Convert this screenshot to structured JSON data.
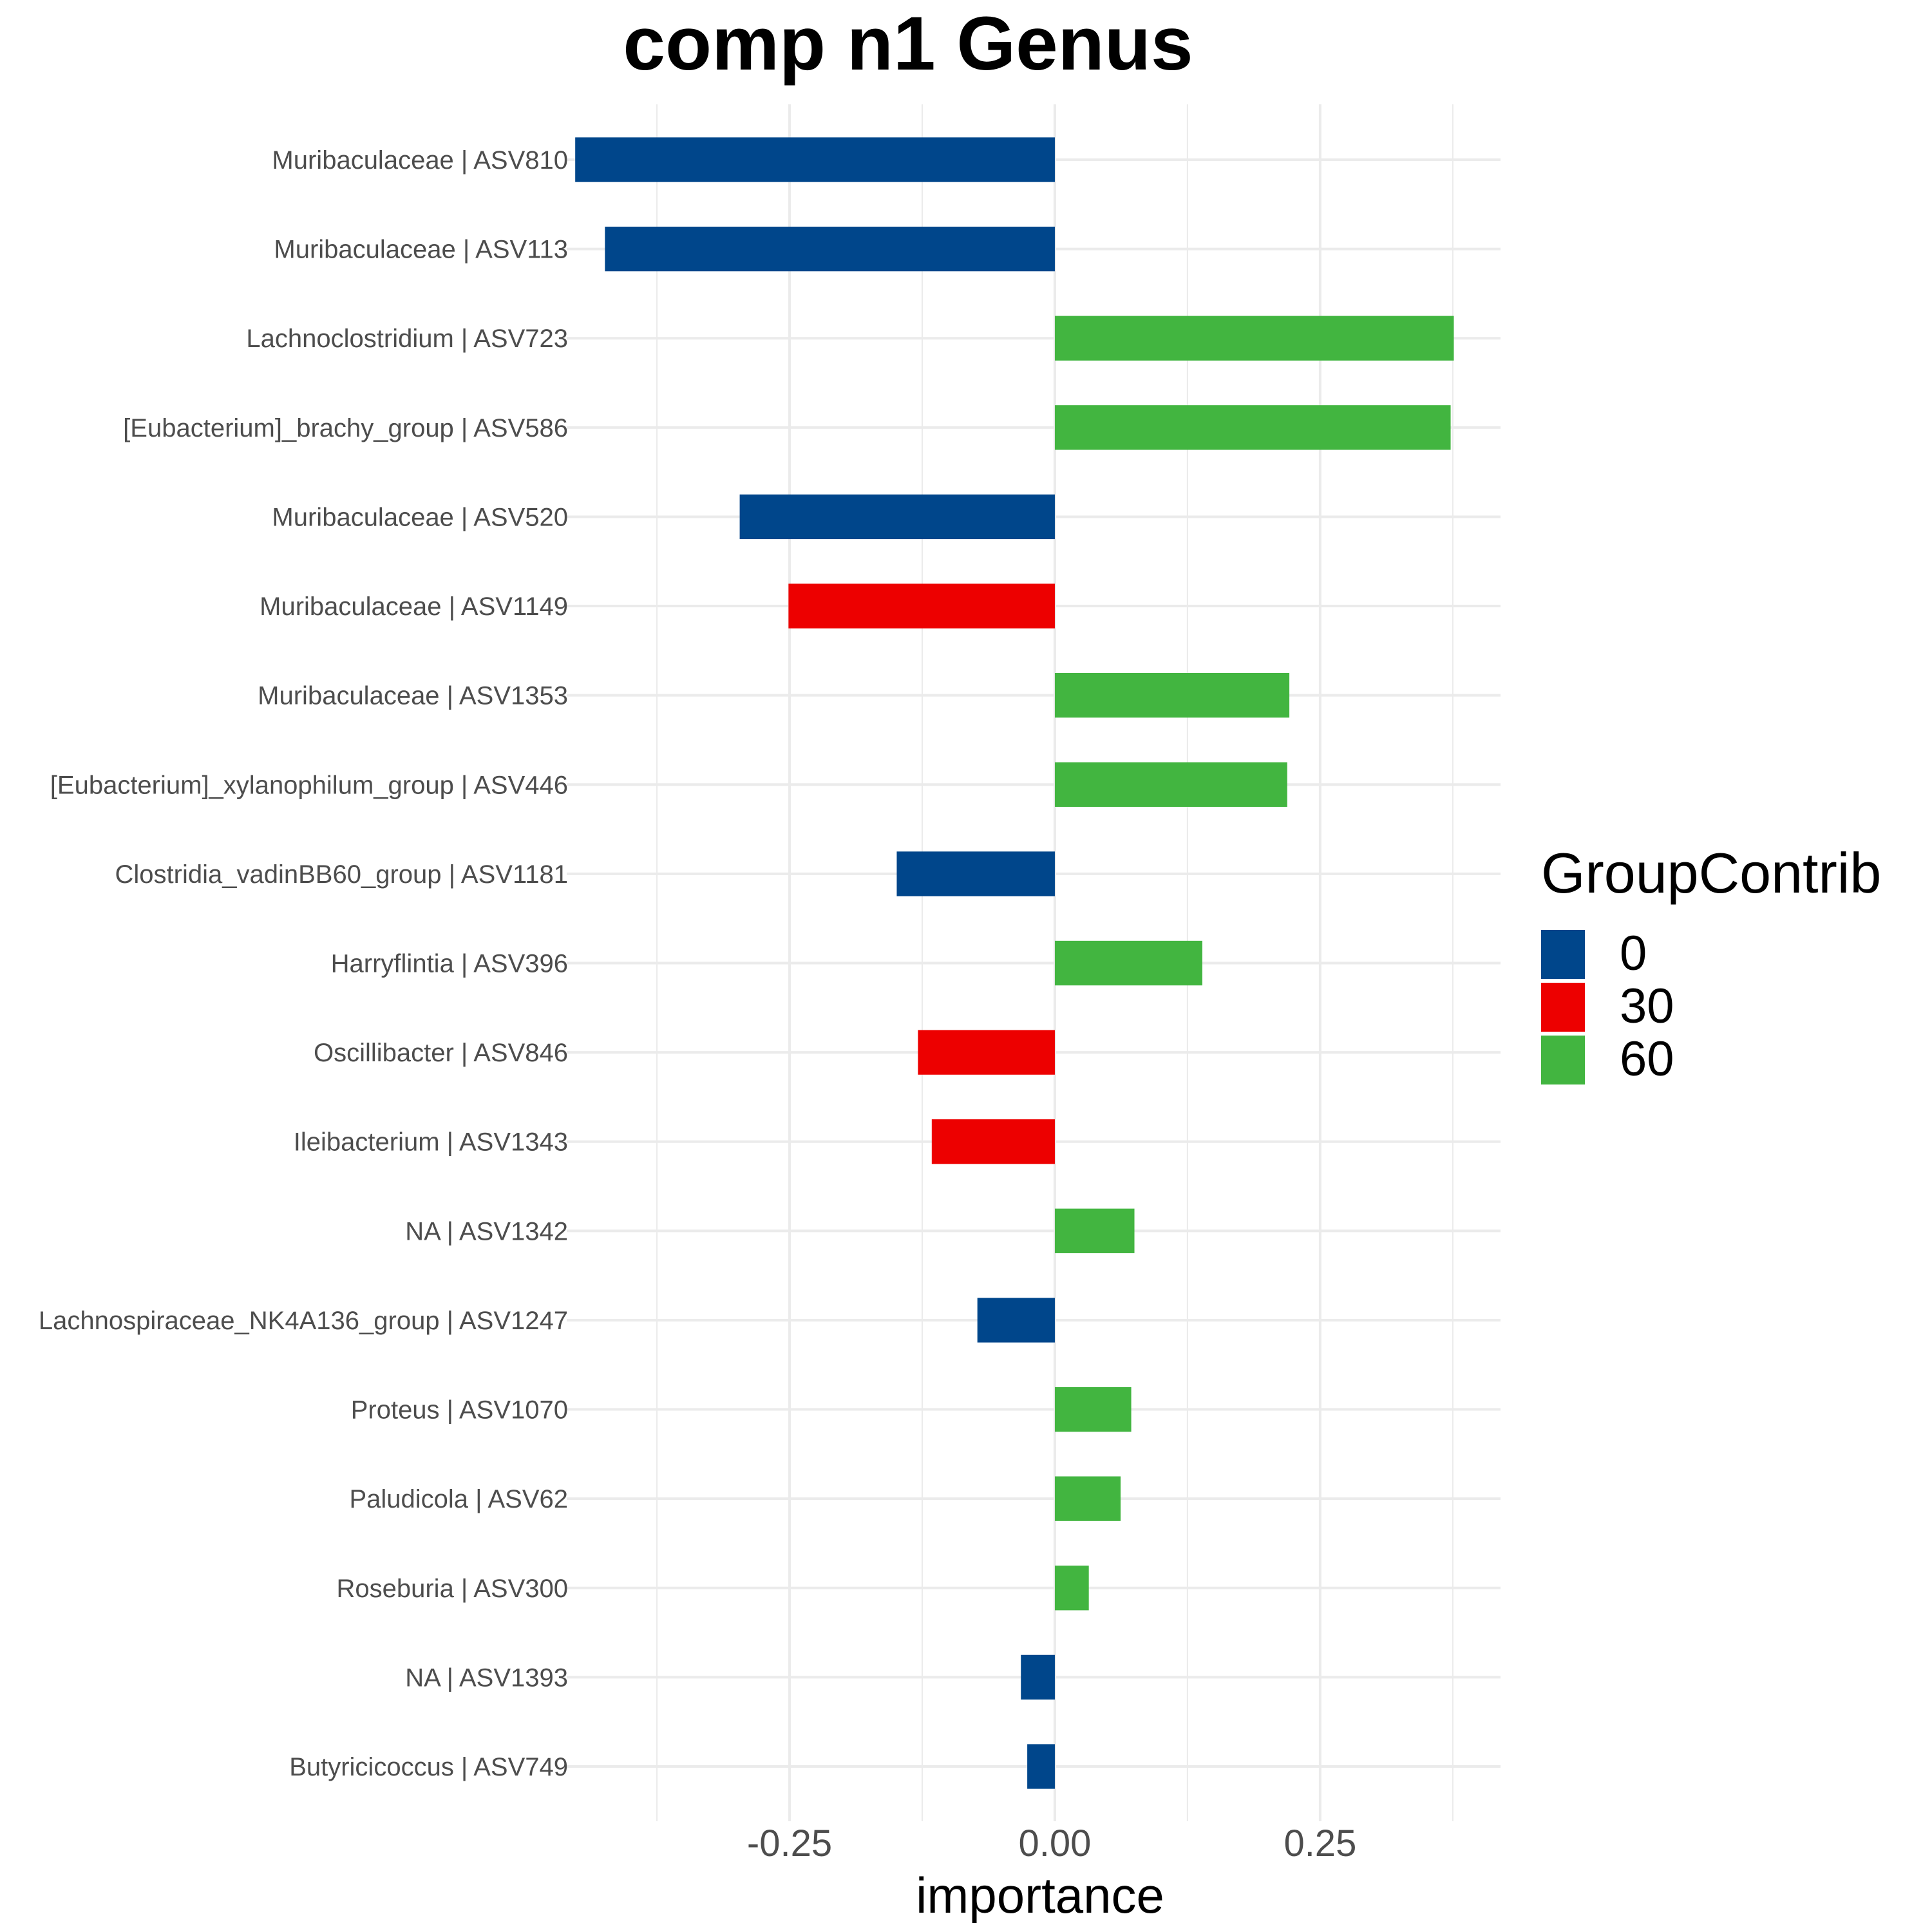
{
  "chart_data": {
    "type": "bar",
    "orientation": "horizontal",
    "title": "comp n1 Genus",
    "xlabel": "importance",
    "ylabel": "",
    "xlim": [
      -0.46,
      0.42
    ],
    "x_ticks": [
      -0.25,
      0.0,
      0.25
    ],
    "x_tick_labels": [
      "-0.25",
      "0.00",
      "0.25"
    ],
    "grid": true,
    "legend": {
      "title": "GroupContrib",
      "placement": "right",
      "entries": [
        {
          "label": "0",
          "color": "#00468B"
        },
        {
          "label": "30",
          "color": "#ED0000"
        },
        {
          "label": "60",
          "color": "#42B540"
        }
      ]
    },
    "categories": [
      "Muribaculaceae | ASV810",
      "Muribaculaceae | ASV113",
      "Lachnoclostridium | ASV723",
      "[Eubacterium]_brachy_group | ASV586",
      "Muribaculaceae | ASV520",
      "Muribaculaceae | ASV1149",
      "Muribaculaceae | ASV1353",
      "[Eubacterium]_xylanophilum_group | ASV446",
      "Clostridia_vadinBB60_group | ASV1181",
      "Harryflintia | ASV396",
      "Oscillibacter | ASV846",
      "Ileibacterium | ASV1343",
      "NA | ASV1342",
      "Lachnospiraceae_NK4A136_group | ASV1247",
      "Proteus | ASV1070",
      "Paludicola | ASV62",
      "Roseburia | ASV300",
      "NA | ASV1393",
      "Butyricicoccus | ASV749"
    ],
    "values": [
      -0.452,
      -0.424,
      0.376,
      0.373,
      -0.297,
      -0.251,
      0.221,
      0.219,
      -0.149,
      0.139,
      -0.129,
      -0.116,
      0.075,
      -0.073,
      0.072,
      0.062,
      0.032,
      -0.032,
      -0.026
    ],
    "groups": [
      "0",
      "0",
      "60",
      "60",
      "0",
      "30",
      "60",
      "60",
      "0",
      "60",
      "30",
      "30",
      "60",
      "0",
      "60",
      "60",
      "60",
      "0",
      "0"
    ]
  }
}
